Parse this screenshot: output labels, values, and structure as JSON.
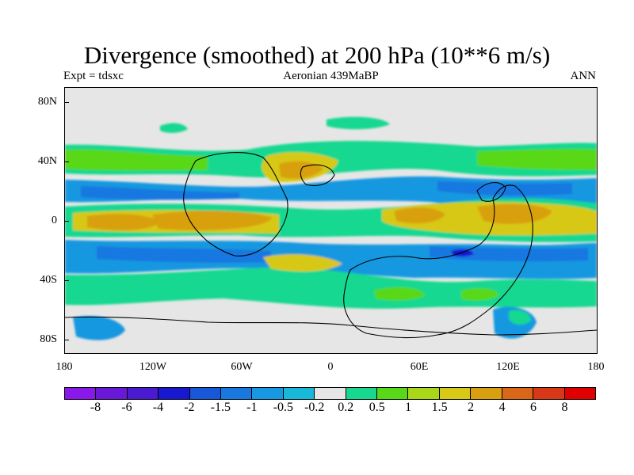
{
  "title": "Divergence (smoothed) at 200 hPa (10**6 m/s)",
  "left_label": "Expt = tdsxc",
  "center_label": "Aeronian 439MaBP",
  "right_label": "ANN",
  "lat_labels": [
    "80N",
    "40N",
    "0",
    "40S",
    "80S"
  ],
  "lon_labels": [
    "180",
    "120W",
    "60W",
    "0",
    "60E",
    "120E",
    "180"
  ],
  "colorbar": {
    "colors": [
      "#8a18e8",
      "#6a18d8",
      "#4a1ad0",
      "#1818d0",
      "#1858d8",
      "#1878e0",
      "#1898e0",
      "#18b8d8",
      "#e6e6e6",
      "#18d890",
      "#58d818",
      "#a8d818",
      "#d8c818",
      "#d8a010",
      "#d86818",
      "#d83818",
      "#e00000"
    ],
    "labels": [
      "-8",
      "-6",
      "-4",
      "-2",
      "-1.5",
      "-1",
      "-0.5",
      "-0.2",
      "0.2",
      "0.5",
      "1",
      "1.5",
      "2",
      "4",
      "6",
      "8"
    ]
  },
  "chart_data": {
    "type": "heatmap",
    "variable": "Divergence (smoothed) at 200 hPa",
    "units": "10**6 m/s",
    "season": "ANN",
    "experiment": "tdsxc",
    "xlim": [
      -180,
      180
    ],
    "ylim": [
      -90,
      90
    ],
    "x_ticks": [
      "180",
      "120W",
      "60W",
      "0",
      "60E",
      "120E",
      "180"
    ],
    "y_ticks": [
      "80N",
      "40N",
      "0",
      "40S",
      "80S"
    ],
    "levels": [
      -8,
      -6,
      -4,
      -2,
      -1.5,
      -1,
      -0.5,
      -0.2,
      0.2,
      0.5,
      1,
      1.5,
      2,
      4,
      6,
      8
    ]
  }
}
